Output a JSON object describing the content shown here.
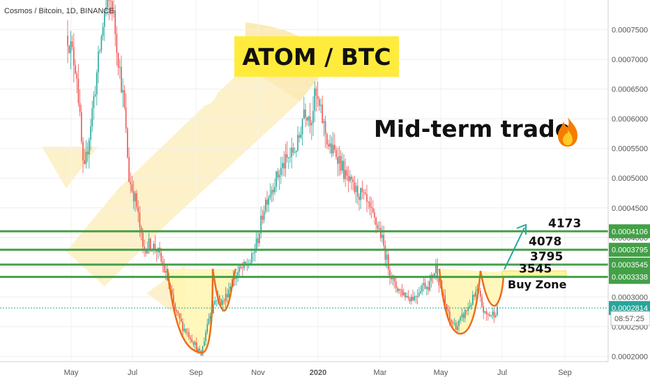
{
  "header": {
    "symbol": "Cosmos / Bitcoin, 1D, BINANCE"
  },
  "title": "ATOM / BTC",
  "subtitle": "Mid-term trade",
  "buy_zone_label": "Buy Zone",
  "countdown": "08:57:25",
  "colors": {
    "background": "#ffffff",
    "watermark": "#fcebb6",
    "up": "#26a69a",
    "down": "#ef5350",
    "level": "#43a047",
    "pattern": "#ee6c1b",
    "pattern_fill": "#fff3a8",
    "title_bg": "#ffeb3b",
    "target_arrow": "#26a69a"
  },
  "chart_data": {
    "type": "candlestick",
    "x_ticks": [
      "May",
      "Jul",
      "Sep",
      "Nov",
      "2020",
      "Mar",
      "May",
      "Jul",
      "Sep"
    ],
    "y_ticks": [
      "0.0002000",
      "0.0002500",
      "0.0003000",
      "0.0003500",
      "0.0004000",
      "0.0004500",
      "0.0005000",
      "0.0005500",
      "0.0006000",
      "0.0006500",
      "0.0007000",
      "0.0007500"
    ],
    "ylim": [
      0.0001911,
      0.0008
    ]
  },
  "levels": [
    {
      "name": "4173",
      "price": 0.0004106,
      "label": "0.0004106"
    },
    {
      "name": "4078",
      "price": 0.0003795,
      "label": "0.0003795"
    },
    {
      "name": "3795",
      "price": 0.0003545,
      "label": "0.0003545"
    },
    {
      "name": "3545",
      "price": 0.0003338,
      "label": "0.0003338"
    }
  ],
  "last_price": {
    "price": 0.0002814,
    "label": "0.0002814"
  },
  "waypoints": [
    [
      97,
      0.00074
    ],
    [
      110,
      0.00068
    ],
    [
      120,
      0.0005
    ],
    [
      135,
      0.00064
    ],
    [
      150,
      0.00078
    ],
    [
      160,
      0.0008
    ],
    [
      170,
      0.0007
    ],
    [
      178,
      0.00062
    ],
    [
      185,
      0.0005
    ],
    [
      195,
      0.00046
    ],
    [
      205,
      0.00038
    ],
    [
      215,
      0.00039
    ],
    [
      225,
      0.00038
    ],
    [
      240,
      0.00033
    ],
    [
      250,
      0.00028
    ],
    [
      262,
      0.00025
    ],
    [
      275,
      0.00023
    ],
    [
      288,
      0.0002
    ],
    [
      298,
      0.00026
    ],
    [
      310,
      0.0003
    ],
    [
      320,
      0.00029
    ],
    [
      330,
      0.00032
    ],
    [
      340,
      0.00034
    ],
    [
      350,
      0.00035
    ],
    [
      360,
      0.00036
    ],
    [
      370,
      0.0004
    ],
    [
      380,
      0.00046
    ],
    [
      392,
      0.00049
    ],
    [
      405,
      0.00052
    ],
    [
      418,
      0.00054
    ],
    [
      428,
      0.00056
    ],
    [
      436,
      0.00062
    ],
    [
      446,
      0.0006
    ],
    [
      452,
      0.00064
    ],
    [
      462,
      0.0006
    ],
    [
      472,
      0.00055
    ],
    [
      484,
      0.00054
    ],
    [
      496,
      0.0005
    ],
    [
      508,
      0.00048
    ],
    [
      520,
      0.00047
    ],
    [
      532,
      0.00044
    ],
    [
      545,
      0.00041
    ],
    [
      555,
      0.00036
    ],
    [
      565,
      0.00032
    ],
    [
      575,
      0.00031
    ],
    [
      585,
      0.0003
    ],
    [
      595,
      0.0003
    ],
    [
      605,
      0.00032
    ],
    [
      615,
      0.00032
    ],
    [
      625,
      0.00035
    ],
    [
      635,
      0.0003
    ],
    [
      645,
      0.00026
    ],
    [
      655,
      0.00025
    ],
    [
      665,
      0.00027
    ],
    [
      675,
      0.00029
    ],
    [
      685,
      0.00031
    ],
    [
      695,
      0.00027
    ],
    [
      705,
      0.00027
    ],
    [
      715,
      0.00028
    ]
  ]
}
